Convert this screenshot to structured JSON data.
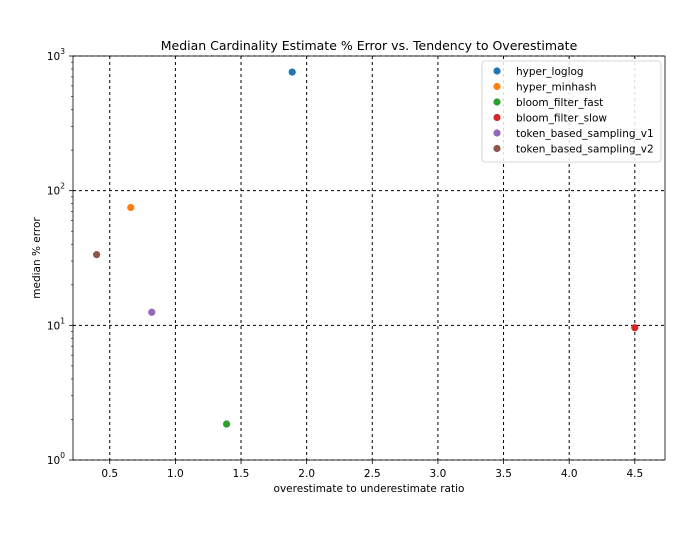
{
  "chart_data": {
    "type": "scatter",
    "title": "Median Cardinality Estimate % Error vs. Tendency to Overestimate",
    "xlabel": "overestimate to underestimate ratio",
    "ylabel": "median % error",
    "xlim": [
      0.22,
      4.73
    ],
    "ylim": [
      1,
      1000
    ],
    "y_scale": "log",
    "x_ticks": [
      0.5,
      1.0,
      1.5,
      2.0,
      2.5,
      3.0,
      3.5,
      4.0,
      4.5
    ],
    "x_tick_labels": [
      "0.5",
      "1.0",
      "1.5",
      "2.0",
      "2.5",
      "3.0",
      "3.5",
      "4.0",
      "4.5"
    ],
    "y_ticks": [
      {
        "value": 1,
        "base": "10",
        "exp": "0"
      },
      {
        "value": 10,
        "base": "10",
        "exp": "1"
      },
      {
        "value": 100,
        "base": "10",
        "exp": "2"
      },
      {
        "value": 1000,
        "base": "10",
        "exp": "3"
      }
    ],
    "grid": true,
    "legend_position": "top-right",
    "series": [
      {
        "name": "hyper_loglog",
        "color": "#1f77b4",
        "x": [
          1.89
        ],
        "y": [
          760
        ]
      },
      {
        "name": "hyper_minhash",
        "color": "#ff7f0e",
        "x": [
          0.66
        ],
        "y": [
          75
        ]
      },
      {
        "name": "bloom_filter_fast",
        "color": "#2ca02c",
        "x": [
          1.39
        ],
        "y": [
          1.85
        ]
      },
      {
        "name": "bloom_filter_slow",
        "color": "#d62728",
        "x": [
          4.5
        ],
        "y": [
          9.6
        ]
      },
      {
        "name": "token_based_sampling_v1",
        "color": "#9467bd",
        "x": [
          0.82
        ],
        "y": [
          12.5
        ]
      },
      {
        "name": "token_based_sampling_v2",
        "color": "#8c564b",
        "x": [
          0.4
        ],
        "y": [
          33.5
        ]
      }
    ]
  }
}
